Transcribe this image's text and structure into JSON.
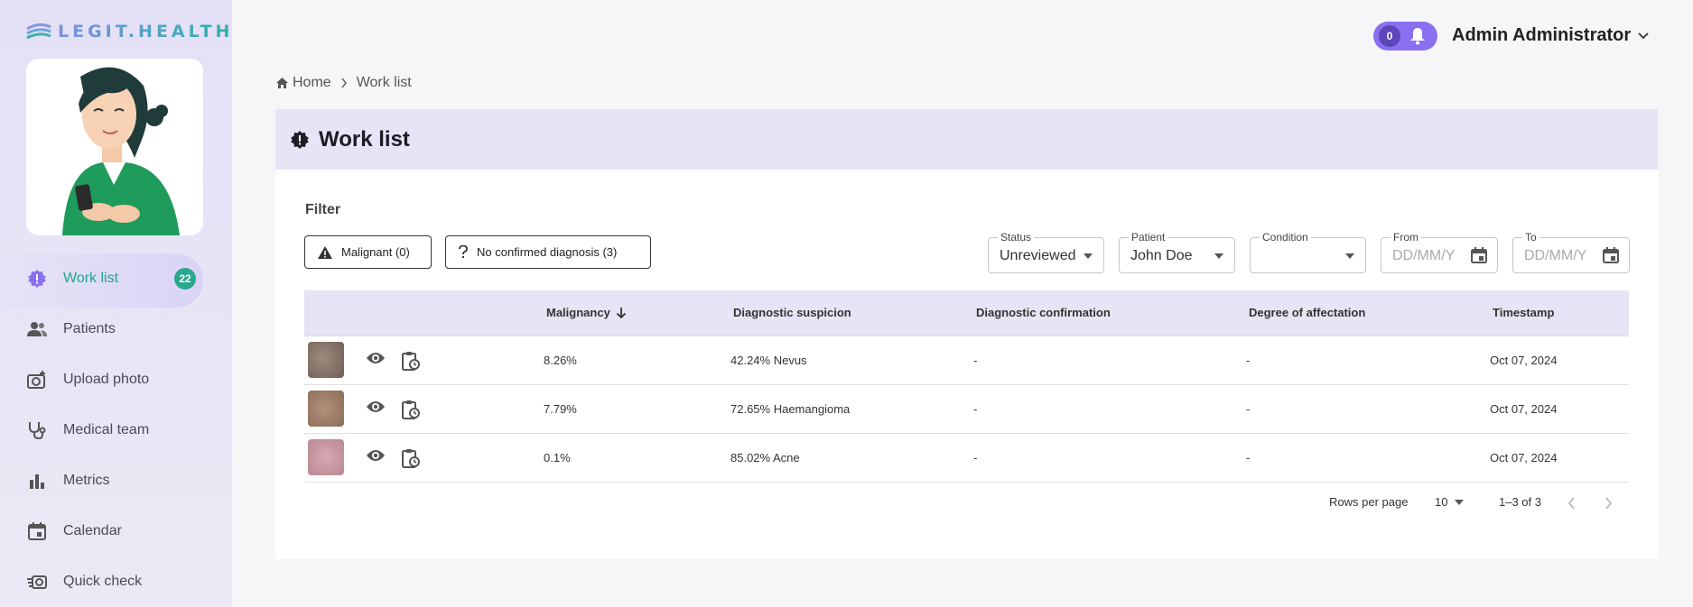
{
  "brand": {
    "name": "LEGIT.HEALTH"
  },
  "sidebar": {
    "items": [
      {
        "label": "Work list",
        "badge": "22",
        "icon": "alert-shield-icon",
        "active": true
      },
      {
        "label": "Patients",
        "icon": "people-icon"
      },
      {
        "label": "Upload photo",
        "icon": "camera-add-icon"
      },
      {
        "label": "Medical team",
        "icon": "stethoscope-icon"
      },
      {
        "label": "Metrics",
        "icon": "bar-chart-icon"
      },
      {
        "label": "Calendar",
        "icon": "calendar-icon"
      },
      {
        "label": "Quick check",
        "icon": "quick-camera-icon"
      }
    ]
  },
  "header": {
    "notifications_count": "0",
    "user_name": "Admin Administrator"
  },
  "breadcrumb": {
    "home": "Home",
    "current": "Work list"
  },
  "page": {
    "title": "Work list"
  },
  "filter": {
    "label": "Filter",
    "chips": [
      {
        "label": "Malignant (0)",
        "icon": "warning-icon"
      },
      {
        "label": "No confirmed diagnosis (3)",
        "icon": "question-icon"
      }
    ],
    "status": {
      "label": "Status",
      "value": "Unreviewed"
    },
    "patient": {
      "label": "Patient",
      "value": "John Doe"
    },
    "condition": {
      "label": "Condition",
      "value": ""
    },
    "from": {
      "label": "From",
      "placeholder": "DD/MM/Y"
    },
    "to": {
      "label": "To",
      "placeholder": "DD/MM/Y"
    }
  },
  "table": {
    "columns": [
      "Malignancy",
      "Diagnostic suspicion",
      "Diagnostic confirmation",
      "Degree of affectation",
      "Timestamp"
    ],
    "rows": [
      {
        "malignancy": "8.26%",
        "suspicion": "42.24% Nevus",
        "confirmation": "-",
        "affectation": "-",
        "timestamp": "Oct 07, 2024",
        "thumb_color": "#8a7a6e"
      },
      {
        "malignancy": "7.79%",
        "suspicion": "72.65% Haemangioma",
        "confirmation": "-",
        "affectation": "-",
        "timestamp": "Oct 07, 2024",
        "thumb_color": "#a08570"
      },
      {
        "malignancy": "0.1%",
        "suspicion": "85.02% Acne",
        "confirmation": "-",
        "affectation": "-",
        "timestamp": "Oct 07, 2024",
        "thumb_color": "#c99aa4"
      }
    ]
  },
  "pagination": {
    "rows_per_page_label": "Rows per page",
    "rows_per_page": "10",
    "range": "1–3 of 3"
  },
  "colors": {
    "accent": "#22a58f",
    "primary": "#8a6ff0",
    "header_bg": "#e7e4f5"
  }
}
